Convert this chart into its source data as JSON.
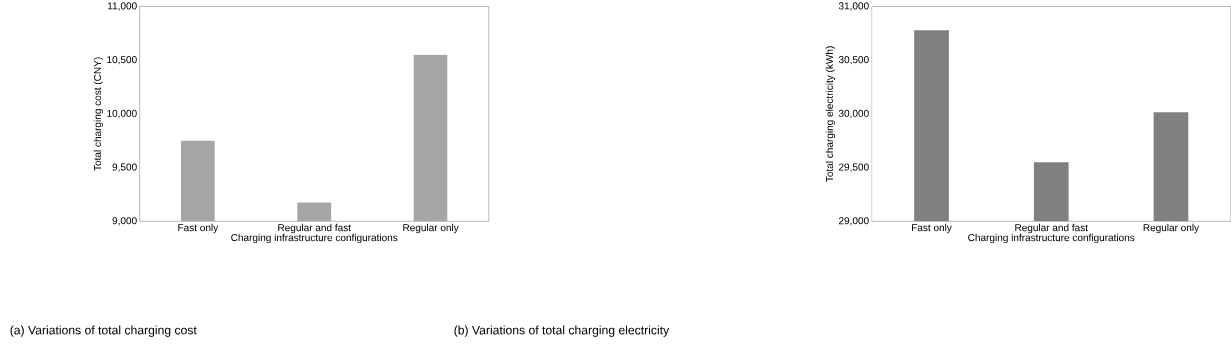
{
  "chart_data": [
    {
      "type": "bar",
      "categories": [
        "Fast only",
        "Regular and fast",
        "Regular only"
      ],
      "values": [
        9750,
        9175,
        10550
      ],
      "color": "#a6a6a6",
      "xlabel": "Charging infrastructure configurations",
      "ylabel": "Total charging cost (CNY)",
      "ylim": [
        9000,
        11000
      ],
      "yticks": [
        {
          "value": 9000,
          "label": "9,000"
        },
        {
          "value": 9500,
          "label": "9,500"
        },
        {
          "value": 10000,
          "label": "10,000"
        },
        {
          "value": 10500,
          "label": "10,500"
        },
        {
          "value": 11000,
          "label": "11,000"
        }
      ],
      "annotations": [
        "(a)  Variations of total charging cost"
      ]
    },
    {
      "type": "bar",
      "categories": [
        "Fast only",
        "Regular and fast",
        "Regular only"
      ],
      "values": [
        30780,
        29550,
        30015
      ],
      "color": "#808080",
      "xlabel": "Charging infrastructure configurations",
      "ylabel": "Total charging electricity (kWh)",
      "ylim": [
        29000,
        31000
      ],
      "yticks": [
        {
          "value": 29000,
          "label": "29,000"
        },
        {
          "value": 29500,
          "label": "29,500"
        },
        {
          "value": 30000,
          "label": "30,000"
        },
        {
          "value": 30500,
          "label": "30,500"
        },
        {
          "value": 31000,
          "label": "31,000"
        }
      ],
      "annotations": [
        "(b) Variations of total charging electricity"
      ]
    }
  ]
}
